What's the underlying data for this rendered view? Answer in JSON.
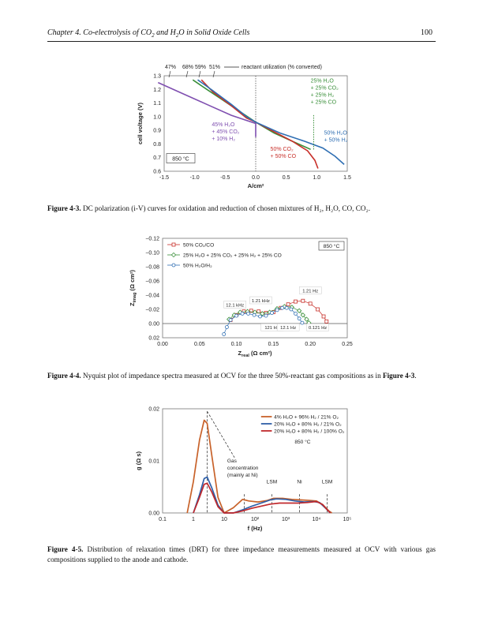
{
  "header": {
    "title_pre": "Chapter 4. Co-electrolysis of CO",
    "title_mid1": " and H",
    "title_mid2": "O in Solid Oxide Cells",
    "page_number": "100"
  },
  "figures": [
    {
      "caption_label": "Figure 4-3.",
      "caption_text": " DC polarization (i-V) curves for oxidation and reduction of chosen mixtures of H₂, H₂O, CO, CO₂."
    },
    {
      "caption_label": "Figure 4-4.",
      "caption_text": " Nyquist plot of impedance spectra measured at OCV for the three 50%-reactant gas compositions as in ",
      "caption_ref": "Figure 4-3",
      "caption_end": "."
    },
    {
      "caption_label": "Figure 4-5.",
      "caption_text": " Distribution of relaxation times (DRT) for three impedance measurements measured at OCV with various gas compositions supplied to the anode and cathode."
    }
  ],
  "chart_data": [
    {
      "type": "line",
      "xlabel": "A/cm²",
      "ylabel": "cell voltage (V)",
      "xlim": [
        -1.5,
        1.5
      ],
      "ylim": [
        0.6,
        1.3
      ],
      "x_ticks": [
        "-1.5",
        "-1.0",
        "-0.5",
        "0.0",
        "0.5",
        "1.0",
        "1.5"
      ],
      "y_ticks": [
        "0.6",
        "0.7",
        "0.8",
        "0.9",
        "1.0",
        "1.1",
        "1.2",
        "1.3"
      ],
      "utilization_labels": [
        "47%",
        "68%",
        "59%",
        "51%"
      ],
      "utilization_legend": "reactant utilization (% converted)",
      "temperature": "850 °C",
      "annotations": {
        "purple": [
          "45% H₂O",
          "+ 45% CO₂",
          "+ 10% H₂"
        ],
        "green": [
          "25% H₂O",
          "+ 25% CO₂",
          "+ 25% H₂",
          "+ 25% CO"
        ],
        "blue": [
          "50% H₂O",
          "+ 50% H₂"
        ],
        "red": [
          "50% CO₂",
          "+ 50% CO"
        ]
      },
      "series": [
        {
          "color": "#7f4fb0",
          "x": [
            -1.6,
            -1.2,
            -0.8,
            -0.4,
            0.0,
            0.0
          ],
          "y": [
            1.25,
            1.17,
            1.09,
            1.01,
            0.95,
            0.85
          ]
        },
        {
          "color": "#3a8f3a",
          "x": [
            -1.03,
            -0.8,
            -0.5,
            -0.2,
            0.0,
            0.3,
            0.6,
            0.8,
            0.9
          ],
          "y": [
            1.27,
            1.2,
            1.11,
            1.02,
            0.96,
            0.88,
            0.82,
            0.78,
            0.76
          ]
        },
        {
          "color": "#c8302a",
          "x": [
            -0.89,
            -0.7,
            -0.4,
            -0.15,
            0.0,
            0.3,
            0.6,
            0.85,
            0.97,
            1.02
          ],
          "y": [
            1.27,
            1.18,
            1.08,
            0.99,
            0.96,
            0.89,
            0.82,
            0.75,
            0.68,
            0.62
          ]
        },
        {
          "color": "#2f6fb3",
          "x": [
            -0.95,
            -0.7,
            -0.4,
            -0.15,
            0.0,
            0.4,
            0.8,
            1.1,
            1.3,
            1.45
          ],
          "y": [
            1.27,
            1.19,
            1.09,
            1.0,
            0.96,
            0.88,
            0.82,
            0.77,
            0.71,
            0.65
          ]
        }
      ]
    },
    {
      "type": "scatter",
      "xlabel_main": "Z",
      "xlabel_sub": "real",
      "xlabel_unit": " (Ω cm²)",
      "ylabel_main": "Z",
      "ylabel_sub": "imag",
      "ylabel_unit": " (Ω cm²)",
      "xlim": [
        0.0,
        0.25
      ],
      "ylim": [
        0.02,
        -0.12
      ],
      "x_ticks": [
        "0.00",
        "0.05",
        "0.10",
        "0.15",
        "0.20",
        "0.25"
      ],
      "y_ticks": [
        "−0.12",
        "−0.10",
        "−0.08",
        "−0.06",
        "−0.04",
        "−0.02",
        "0.00",
        "0.02"
      ],
      "temperature": "850 °C",
      "legend": [
        {
          "name": "50% CO₂/CO",
          "color": "#c8302a",
          "marker": "square"
        },
        {
          "name": "25% H₂O + 25% CO₂ + 25% H₂ + 25% CO",
          "color": "#3a8f3a",
          "marker": "diamond"
        },
        {
          "name": "50% H₂O/H₂",
          "color": "#2f6fb3",
          "marker": "circle"
        }
      ],
      "frequency_labels": [
        "12.1 kHz",
        "1.21 kHz",
        "1.21 Hz",
        "121 Hz",
        "12.1 Hz",
        "0.121 Hz"
      ],
      "series": [
        {
          "color": "#c8302a",
          "marker": "square",
          "x": [
            0.092,
            0.1,
            0.11,
            0.12,
            0.13,
            0.14,
            0.15,
            0.16,
            0.17,
            0.18,
            0.19,
            0.2,
            0.21,
            0.218,
            0.222
          ],
          "y": [
            -0.005,
            -0.012,
            -0.017,
            -0.018,
            -0.017,
            -0.015,
            -0.016,
            -0.022,
            -0.027,
            -0.031,
            -0.032,
            -0.028,
            -0.02,
            -0.01,
            -0.003
          ]
        },
        {
          "color": "#3a8f3a",
          "marker": "diamond",
          "x": [
            0.09,
            0.097,
            0.105,
            0.115,
            0.125,
            0.135,
            0.145,
            0.155,
            0.165,
            0.175,
            0.185,
            0.19,
            0.195,
            0.198
          ],
          "y": [
            -0.006,
            -0.012,
            -0.016,
            -0.017,
            -0.016,
            -0.014,
            -0.016,
            -0.021,
            -0.024,
            -0.023,
            -0.018,
            -0.012,
            -0.006,
            -0.001
          ]
        },
        {
          "color": "#2f6fb3",
          "marker": "circle",
          "x": [
            0.083,
            0.087,
            0.092,
            0.1,
            0.108,
            0.116,
            0.124,
            0.132,
            0.14,
            0.148,
            0.155,
            0.162,
            0.168,
            0.174,
            0.18,
            0.185,
            0.189
          ],
          "y": [
            0.015,
            0.005,
            -0.005,
            -0.011,
            -0.014,
            -0.014,
            -0.012,
            -0.01,
            -0.011,
            -0.015,
            -0.019,
            -0.022,
            -0.022,
            -0.02,
            -0.014,
            -0.007,
            -0.001
          ]
        }
      ]
    },
    {
      "type": "line",
      "xlabel": "f (Hz)",
      "ylabel": "g (Ω s)",
      "xlim_log10": [
        -1,
        5
      ],
      "ylim": [
        0.0,
        0.02
      ],
      "x_ticks": [
        "0.1",
        "1",
        "10",
        "10²",
        "10³",
        "10⁴",
        "10⁵"
      ],
      "y_ticks": [
        "0.00",
        "0.01",
        "0.02"
      ],
      "temperature": "850 °C",
      "legend": [
        {
          "name": "4% H₂O + 96% H₂  /  21% O₂",
          "color": "#c8622a"
        },
        {
          "name": "20% H₂O + 80% H₂  /  21% O₂",
          "color": "#2f5fa8"
        },
        {
          "name": "20% H₂O + 80% H₂ / 100% O₂",
          "color": "#c0282c"
        }
      ],
      "peak_labels": {
        "gas": [
          "Gas",
          "concentration",
          "(mainly at Ni)"
        ],
        "lsm1": "LSM",
        "ni": "Ni",
        "lsm2": "LSM"
      },
      "series": [
        {
          "color": "#c8622a",
          "log10_f": [
            -0.2,
            0.0,
            0.2,
            0.35,
            0.45,
            0.6,
            0.8,
            1.0,
            1.3,
            1.6,
            1.8,
            2.1,
            2.4,
            2.6,
            2.9,
            3.2,
            3.5,
            3.8,
            4.0,
            4.2,
            4.4,
            4.5
          ],
          "g": [
            0.0,
            0.006,
            0.014,
            0.0178,
            0.0172,
            0.011,
            0.003,
            0.0,
            0.001,
            0.0026,
            0.0023,
            0.0021,
            0.0024,
            0.0028,
            0.0028,
            0.0026,
            0.0025,
            0.0024,
            0.0023,
            0.0016,
            0.0004,
            0.0
          ]
        },
        {
          "color": "#2f5fa8",
          "log10_f": [
            0.0,
            0.2,
            0.35,
            0.45,
            0.6,
            0.8,
            1.0,
            1.3,
            1.6,
            1.9,
            2.2,
            2.5,
            2.7,
            3.0,
            3.3,
            3.6,
            3.9,
            4.1,
            4.3,
            4.45
          ],
          "g": [
            0.0,
            0.0035,
            0.0066,
            0.0069,
            0.0048,
            0.0015,
            0.0,
            0.0,
            0.0006,
            0.0013,
            0.0019,
            0.0025,
            0.0027,
            0.0026,
            0.0023,
            0.0021,
            0.0022,
            0.002,
            0.0009,
            0.0
          ]
        },
        {
          "color": "#c0282c",
          "log10_f": [
            0.0,
            0.2,
            0.35,
            0.45,
            0.6,
            0.8,
            1.0,
            1.3,
            1.6,
            1.9,
            2.2,
            2.5,
            2.8,
            3.1,
            3.4,
            3.7,
            4.0,
            4.2,
            4.35,
            4.45
          ],
          "g": [
            0.0,
            0.003,
            0.0055,
            0.0057,
            0.004,
            0.0012,
            0.0,
            0.0,
            0.0004,
            0.0009,
            0.0013,
            0.0017,
            0.0019,
            0.0019,
            0.0019,
            0.002,
            0.0022,
            0.0016,
            0.0006,
            0.0
          ]
        }
      ]
    }
  ]
}
